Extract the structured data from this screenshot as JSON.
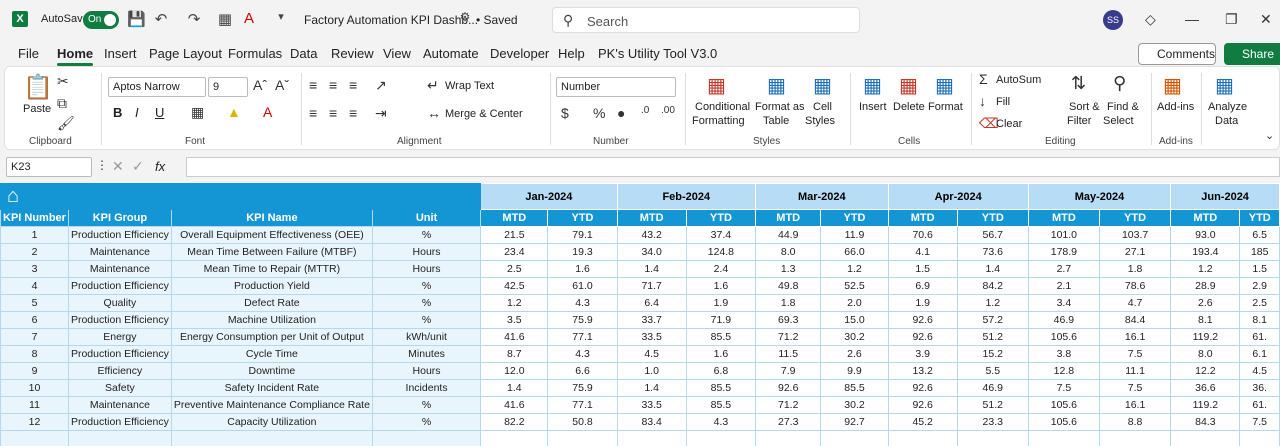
{
  "titlebar": {
    "app_logo": "X",
    "autosave_label": "AutoSave",
    "autosave_state": "On",
    "doc_title": "Factory Automation KPI Dashb...",
    "saved_label": "• Saved",
    "search_placeholder": "Search",
    "avatar_initials": "SS"
  },
  "menu": {
    "items": [
      "File",
      "Home",
      "Insert",
      "Page Layout",
      "Formulas",
      "Data",
      "Review",
      "View",
      "Automate",
      "Developer",
      "Help",
      "PK's Utility Tool V3.0"
    ],
    "active": "Home",
    "comments_label": "Comments",
    "share_label": "Share"
  },
  "ribbon": {
    "clipboard": {
      "paste": "Paste",
      "label": "Clipboard"
    },
    "font": {
      "name": "Aptos Narrow",
      "size": "9",
      "label": "Font",
      "bold": "B",
      "italic": "I",
      "underline": "U"
    },
    "alignment": {
      "wrap": "Wrap Text",
      "merge": "Merge & Center",
      "label": "Alignment"
    },
    "number": {
      "format": "Number",
      "label": "Number"
    },
    "styles": {
      "conditional": "Conditional",
      "conditional2": "Formatting",
      "format_as": "Format as",
      "format_as2": "Table",
      "cell": "Cell",
      "cell2": "Styles",
      "label": "Styles"
    },
    "cells": {
      "insert": "Insert",
      "delete": "Delete",
      "format": "Format",
      "label": "Cells"
    },
    "editing": {
      "autosum": "AutoSum",
      "fill": "Fill",
      "clear": "Clear",
      "sort": "Sort &",
      "sort2": "Filter",
      "find": "Find &",
      "find2": "Select",
      "label": "Editing"
    },
    "addins": {
      "label_btn": "Add-ins",
      "label": "Add-ins"
    },
    "analyze": {
      "label1": "Analyze",
      "label2": "Data"
    }
  },
  "formula_bar": {
    "cell_ref": "K23",
    "fx": "fx",
    "value": ""
  },
  "sheet": {
    "headers": [
      "KPI Number",
      "KPI Group",
      "KPI Name",
      "Unit"
    ],
    "months": [
      "Jan-2024",
      "Feb-2024",
      "Mar-2024",
      "Apr-2024",
      "May-2024",
      "Jun-2024"
    ],
    "sub_headers": [
      "MTD",
      "YTD"
    ],
    "rows": [
      {
        "num": "1",
        "group": "Production Efficiency",
        "name": "Overall Equipment Effectiveness (OEE)",
        "unit": "%",
        "vals": [
          "21.5",
          "79.1",
          "43.2",
          "37.4",
          "44.9",
          "11.9",
          "70.6",
          "56.7",
          "101.0",
          "103.7",
          "93.0",
          "6.5"
        ]
      },
      {
        "num": "2",
        "group": "Maintenance",
        "name": "Mean Time Between Failure (MTBF)",
        "unit": "Hours",
        "vals": [
          "23.4",
          "19.3",
          "34.0",
          "124.8",
          "8.0",
          "66.0",
          "4.1",
          "73.6",
          "178.9",
          "27.1",
          "193.4",
          "185"
        ]
      },
      {
        "num": "3",
        "group": "Maintenance",
        "name": "Mean Time to Repair (MTTR)",
        "unit": "Hours",
        "vals": [
          "2.5",
          "1.6",
          "1.4",
          "2.4",
          "1.3",
          "1.2",
          "1.5",
          "1.4",
          "2.7",
          "1.8",
          "1.2",
          "1.5"
        ]
      },
      {
        "num": "4",
        "group": "Production Efficiency",
        "name": "Production Yield",
        "unit": "%",
        "vals": [
          "42.5",
          "61.0",
          "71.7",
          "1.6",
          "49.8",
          "52.5",
          "6.9",
          "84.2",
          "2.1",
          "78.6",
          "28.9",
          "2.9"
        ]
      },
      {
        "num": "5",
        "group": "Quality",
        "name": "Defect Rate",
        "unit": "%",
        "vals": [
          "1.2",
          "4.3",
          "6.4",
          "1.9",
          "1.8",
          "2.0",
          "1.9",
          "1.2",
          "3.4",
          "4.7",
          "2.6",
          "2.5"
        ]
      },
      {
        "num": "6",
        "group": "Production Efficiency",
        "name": "Machine Utilization",
        "unit": "%",
        "vals": [
          "3.5",
          "75.9",
          "33.7",
          "71.9",
          "69.3",
          "15.0",
          "92.6",
          "57.2",
          "46.9",
          "84.4",
          "8.1",
          "8.1"
        ]
      },
      {
        "num": "7",
        "group": "Energy",
        "name": "Energy Consumption per Unit of Output",
        "unit": "kWh/unit",
        "vals": [
          "41.6",
          "77.1",
          "33.5",
          "85.5",
          "71.2",
          "30.2",
          "92.6",
          "51.2",
          "105.6",
          "16.1",
          "119.2",
          "61."
        ]
      },
      {
        "num": "8",
        "group": "Production Efficiency",
        "name": "Cycle Time",
        "unit": "Minutes",
        "vals": [
          "8.7",
          "4.3",
          "4.5",
          "1.6",
          "11.5",
          "2.6",
          "3.9",
          "15.2",
          "3.8",
          "7.5",
          "8.0",
          "6.1"
        ]
      },
      {
        "num": "9",
        "group": "Efficiency",
        "name": "Downtime",
        "unit": "Hours",
        "vals": [
          "12.0",
          "6.6",
          "1.0",
          "6.8",
          "7.9",
          "9.9",
          "13.2",
          "5.5",
          "12.8",
          "11.1",
          "12.2",
          "4.5"
        ]
      },
      {
        "num": "10",
        "group": "Safety",
        "name": "Safety Incident Rate",
        "unit": "Incidents",
        "vals": [
          "1.4",
          "75.9",
          "1.4",
          "85.5",
          "92.6",
          "85.5",
          "92.6",
          "46.9",
          "7.5",
          "7.5",
          "36.6",
          "36."
        ]
      },
      {
        "num": "11",
        "group": "Maintenance",
        "name": "Preventive Maintenance Compliance Rate",
        "unit": "%",
        "vals": [
          "41.6",
          "77.1",
          "33.5",
          "85.5",
          "71.2",
          "30.2",
          "92.6",
          "51.2",
          "105.6",
          "16.1",
          "119.2",
          "61."
        ]
      },
      {
        "num": "12",
        "group": "Production Efficiency",
        "name": "Capacity Utilization",
        "unit": "%",
        "vals": [
          "82.2",
          "50.8",
          "83.4",
          "4.3",
          "27.3",
          "92.7",
          "45.2",
          "23.3",
          "105.6",
          "8.8",
          "84.3",
          "7.5"
        ]
      }
    ]
  },
  "colors": {
    "excel_green": "#107c41",
    "header_blue": "#1596d4",
    "month_blue": "#b7dcf5",
    "info_fill": "#e9f5fc"
  }
}
